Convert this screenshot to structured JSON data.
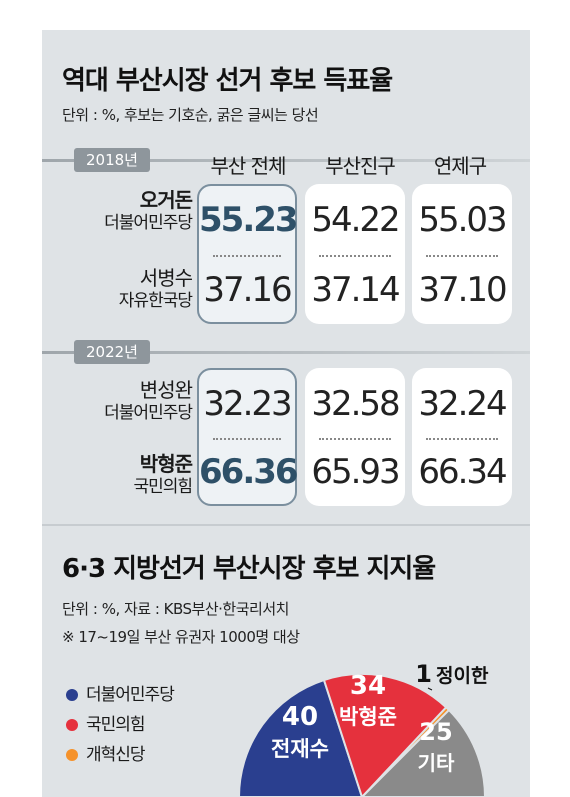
{
  "title1": "역대 부산시장 선거 후보 득표율",
  "note1": "단위 : %, 후보는 기호순, 굵은 글씨는 당선",
  "columns": [
    "부산 전체",
    "부산진구",
    "연제구"
  ],
  "years": [
    "2018년",
    "2022년"
  ],
  "candidates": [
    {
      "name": "오거돈",
      "party": "더불어민주당",
      "win": true
    },
    {
      "name": "서병수",
      "party": "자유한국당",
      "win": false
    },
    {
      "name": "변성완",
      "party": "더불어민주당",
      "win": false
    },
    {
      "name": "박형준",
      "party": "국민의힘",
      "win": true
    }
  ],
  "title2": "6·3 지방선거 부산시장 후보 지지율",
  "note2": "단위 : %, 자료 : KBS부산·한국리서치",
  "note3": "※ 17~19일 부산 유권자 1000명 대상",
  "legend": [
    {
      "label": "더불어민주당",
      "color": "#2a3f8f"
    },
    {
      "label": "국민의힘",
      "color": "#e5313d"
    },
    {
      "label": "개혁신당",
      "color": "#f5922b"
    }
  ],
  "chart_data": [
    {
      "type": "table",
      "title": "역대 부산시장 선거 후보 득표율",
      "columns": [
        "부산 전체",
        "부산진구",
        "연제구"
      ],
      "rows": [
        {
          "year": "2018년",
          "candidate": "오거돈",
          "party": "더불어민주당",
          "values": [
            "55.23",
            "54.22",
            "55.03"
          ]
        },
        {
          "year": "2018년",
          "candidate": "서병수",
          "party": "자유한국당",
          "values": [
            "37.16",
            "37.14",
            "37.10"
          ]
        },
        {
          "year": "2022년",
          "candidate": "변성완",
          "party": "더불어민주당",
          "values": [
            "32.23",
            "32.58",
            "32.24"
          ]
        },
        {
          "year": "2022년",
          "candidate": "박형준",
          "party": "국민의힘",
          "values": [
            "66.36",
            "65.93",
            "66.34"
          ]
        }
      ]
    },
    {
      "type": "pie",
      "title": "6·3 지방선거 부산시장 후보 지지율",
      "slices": [
        {
          "label": "전재수",
          "value": 40,
          "color": "#2a3f8f"
        },
        {
          "label": "박형준",
          "value": 34,
          "color": "#e5313d"
        },
        {
          "label": "정이한",
          "value": 1,
          "color": "#f5922b"
        },
        {
          "label": "기타",
          "value": 25,
          "color": "#8a8a8a"
        }
      ]
    }
  ]
}
